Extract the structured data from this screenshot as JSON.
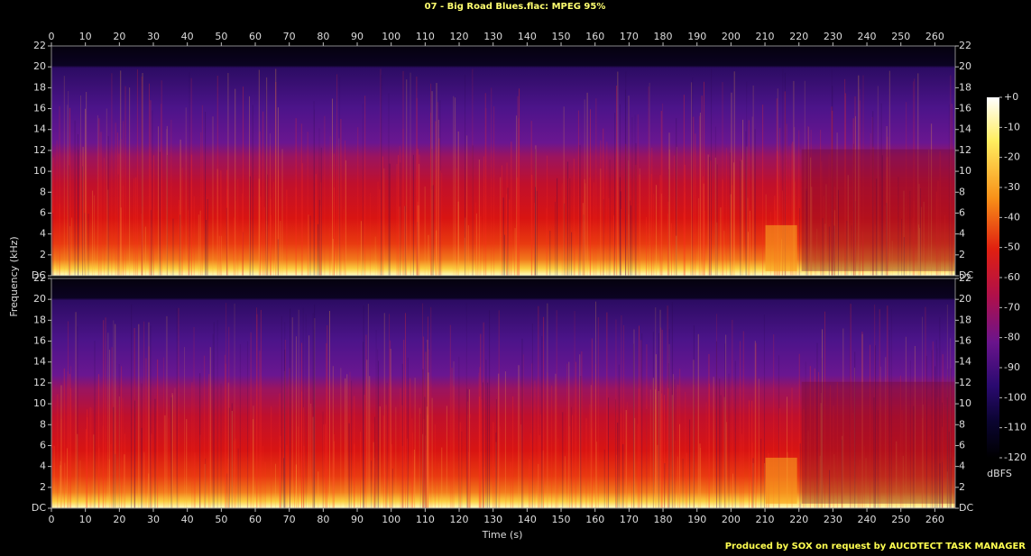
{
  "chart_data": {
    "type": "spectrogram",
    "title": "07 - Big Road Blues.flac: MPEG 95%",
    "x_label": "Time (s)",
    "y_label": "Frequency (kHz)",
    "xlim": [
      0,
      266
    ],
    "xticks": [
      0,
      10,
      20,
      30,
      40,
      50,
      60,
      70,
      80,
      90,
      100,
      110,
      120,
      130,
      140,
      150,
      160,
      170,
      180,
      190,
      200,
      210,
      220,
      230,
      240,
      250,
      260
    ],
    "channels": [
      {
        "ylim": [
          0,
          22
        ],
        "yticks": [
          {
            "value": 0,
            "label": "DC"
          },
          2,
          4,
          6,
          8,
          10,
          12,
          14,
          16,
          18,
          20,
          22
        ]
      },
      {
        "ylim": [
          0,
          22
        ],
        "yticks": [
          {
            "value": 0,
            "label": "DC"
          },
          2,
          4,
          6,
          8,
          10,
          12,
          14,
          16,
          18,
          20,
          22
        ]
      }
    ],
    "colorbar": {
      "label": "dBFS",
      "lim": [
        -120,
        0
      ],
      "ticks": [
        {
          "value": 0,
          "label": "+0"
        },
        -10,
        -20,
        -30,
        -40,
        -50,
        -60,
        -70,
        -80,
        -90,
        -100,
        -110,
        -120
      ]
    },
    "footer": "Produced by SOX on request by AUCDTECT TASK MANAGER"
  }
}
